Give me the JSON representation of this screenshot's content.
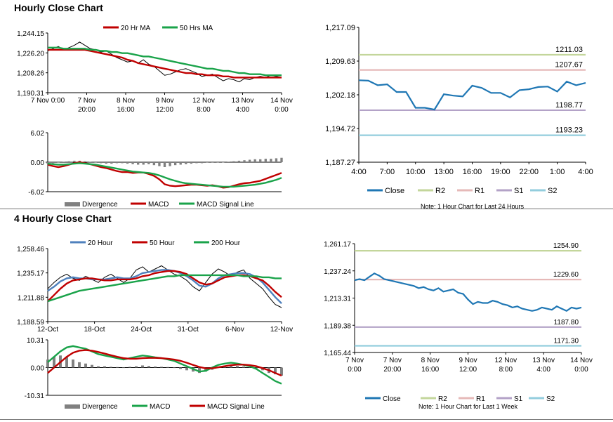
{
  "sections": {
    "hourly_title": "Hourly Close Chart",
    "four_hourly_title": "4 Hourly Close Chart"
  },
  "colors": {
    "green_ma": "#1aa34a",
    "red_ma": "#c00000",
    "blue_ma": "#4f81bd",
    "close": "#1f77b4",
    "r2": "#c3d69b",
    "r1": "#e6b9b8",
    "s1": "#b3a2c7",
    "s2": "#93cddd",
    "price": "#000000",
    "divergence": "#808080"
  },
  "chart_data": [
    {
      "id": "hourly-price",
      "type": "line",
      "ylim": [
        1190.31,
        1244.15
      ],
      "yticks": [
        "1,244.15",
        "1,226.20",
        "1,208.26",
        "1,190.31"
      ],
      "xticks": [
        [
          "7 Nov 0:00"
        ],
        [
          "7 Nov",
          "20:00"
        ],
        [
          "8 Nov",
          "16:00"
        ],
        [
          "9 Nov",
          "12:00"
        ],
        [
          "12 Nov",
          "8:00"
        ],
        [
          "13 Nov",
          "4:00"
        ],
        [
          "14 Nov",
          "0:00"
        ]
      ],
      "legend": [
        "20 Hr MA",
        "50 Hrs MA"
      ],
      "series": [
        {
          "name": "Price",
          "color": "#000000",
          "values": [
            1228,
            1230,
            1232,
            1229,
            1231,
            1233,
            1236,
            1233,
            1230,
            1229,
            1227,
            1228,
            1225,
            1222,
            1220,
            1218,
            1219,
            1217,
            1220,
            1216,
            1214,
            1210,
            1206,
            1207,
            1209,
            1211,
            1212,
            1210,
            1208,
            1205,
            1206,
            1207,
            1204,
            1201,
            1203,
            1202,
            1200,
            1203,
            1202,
            1204,
            1205,
            1204,
            1206,
            1205,
            1204
          ]
        },
        {
          "name": "20 Hr MA",
          "color": "#c00000",
          "values": [
            1229,
            1229,
            1229,
            1229,
            1229,
            1229,
            1229,
            1229,
            1228,
            1227,
            1226,
            1225,
            1224,
            1223,
            1222,
            1220,
            1219,
            1217,
            1216,
            1215,
            1214,
            1213,
            1212,
            1211,
            1210,
            1209,
            1208,
            1208,
            1207,
            1207,
            1206,
            1206,
            1206,
            1205,
            1205,
            1204,
            1204,
            1204,
            1204,
            1204,
            1204,
            1204,
            1204,
            1204,
            1204
          ]
        },
        {
          "name": "50 Hrs MA",
          "color": "#1aa34a",
          "values": [
            1231,
            1231,
            1231,
            1230,
            1230,
            1230,
            1230,
            1230,
            1229,
            1229,
            1228,
            1228,
            1227,
            1227,
            1226,
            1226,
            1225,
            1224,
            1223,
            1223,
            1222,
            1221,
            1220,
            1219,
            1218,
            1217,
            1216,
            1215,
            1214,
            1213,
            1212,
            1212,
            1211,
            1210,
            1210,
            1209,
            1208,
            1208,
            1207,
            1207,
            1207,
            1206,
            1206,
            1206,
            1206
          ]
        }
      ]
    },
    {
      "id": "hourly-macd",
      "type": "line",
      "ylim": [
        -6.02,
        6.02
      ],
      "yticks": [
        "6.02",
        "0.00",
        "-6.02"
      ],
      "legend": [
        "Divergence",
        "MACD",
        "MACD Signal Line"
      ],
      "divergence": [
        -0.3,
        -0.2,
        -0.1,
        0.1,
        0.2,
        0.3,
        0.3,
        0.2,
        0.1,
        -0.1,
        -0.2,
        -0.3,
        -0.3,
        -0.2,
        -0.2,
        -0.3,
        -0.4,
        -0.5,
        -0.5,
        -0.4,
        -0.6,
        -0.8,
        -1,
        -0.8,
        -0.6,
        -0.5,
        -0.4,
        -0.3,
        -0.2,
        -0.2,
        -0.1,
        -0.1,
        -0.1,
        0,
        0.1,
        0.2,
        0.3,
        0.4,
        0.5,
        0.6,
        0.6,
        0.7,
        0.7,
        0.8,
        0.9
      ],
      "series": [
        {
          "name": "MACD",
          "color": "#c00000",
          "values": [
            -0.5,
            -0.8,
            -1,
            -0.8,
            -0.5,
            -0.2,
            0,
            -0.2,
            -0.4,
            -0.7,
            -1,
            -1.2,
            -1.5,
            -1.8,
            -2,
            -2,
            -2.2,
            -2.1,
            -2.1,
            -2.4,
            -2.8,
            -3.5,
            -4.5,
            -4.8,
            -4.9,
            -4.8,
            -4.7,
            -4.6,
            -4.6,
            -4.7,
            -4.8,
            -4.7,
            -4.9,
            -5.2,
            -5.1,
            -4.8,
            -4.5,
            -4.3,
            -4.2,
            -4,
            -3.8,
            -3.4,
            -3,
            -2.6,
            -2.2
          ]
        },
        {
          "name": "MACD Signal Line",
          "color": "#1aa34a",
          "values": [
            -0.3,
            -0.4,
            -0.5,
            -0.5,
            -0.4,
            -0.3,
            -0.2,
            -0.3,
            -0.4,
            -0.5,
            -0.7,
            -0.9,
            -1.1,
            -1.3,
            -1.5,
            -1.7,
            -1.9,
            -2,
            -2.1,
            -2.2,
            -2.4,
            -2.7,
            -3.1,
            -3.5,
            -3.8,
            -4.1,
            -4.3,
            -4.4,
            -4.5,
            -4.6,
            -4.7,
            -4.8,
            -4.9,
            -5,
            -5,
            -5,
            -4.9,
            -4.8,
            -4.7,
            -4.6,
            -4.4,
            -4.2,
            -3.9,
            -3.6,
            -3.2
          ]
        }
      ]
    },
    {
      "id": "hourly-levels",
      "type": "line",
      "ylim": [
        1187.27,
        1217.09
      ],
      "yticks": [
        "1,217.09",
        "1,209.63",
        "1,202.18",
        "1,194.72",
        "1,187.27"
      ],
      "xticks": [
        "4:00",
        "7:00",
        "10:00",
        "13:00",
        "16:00",
        "19:00",
        "22:00",
        "1:00",
        "4:00"
      ],
      "close": [
        1205.4,
        1205.3,
        1204.3,
        1204.5,
        1202.8,
        1202.8,
        1199.3,
        1199.3,
        1198.9,
        1202.3,
        1202,
        1201.8,
        1204.2,
        1203.7,
        1202.6,
        1202.6,
        1201.6,
        1203.2,
        1203.4,
        1203.9,
        1204,
        1202.9,
        1205.1,
        1204.3,
        1204.8
      ],
      "levels": [
        {
          "name": "R2",
          "value": 1211.03,
          "label": "1211.03"
        },
        {
          "name": "R1",
          "value": 1207.67,
          "label": "1207.67"
        },
        {
          "name": "S1",
          "value": 1198.77,
          "label": "1198.77"
        },
        {
          "name": "S2",
          "value": 1193.23,
          "label": "1193.23"
        }
      ],
      "legend": [
        "Close",
        "R2",
        "R1",
        "S1",
        "S2"
      ],
      "note": "Note: 1 Hour Chart for Last 24 Hours"
    },
    {
      "id": "four-hourly-price",
      "type": "line",
      "ylim": [
        1188.59,
        1258.46
      ],
      "yticks": [
        "1,258.46",
        "1,235.17",
        "1,211.88",
        "1,188.59"
      ],
      "xticks": [
        "12-Oct",
        "18-Oct",
        "24-Oct",
        "31-Oct",
        "6-Nov",
        "12-Nov"
      ],
      "legend": [
        "20 Hour",
        "50 Hour",
        "200 Hour"
      ],
      "series": [
        {
          "name": "Price",
          "color": "#000000",
          "values": [
            1220,
            1226,
            1231,
            1234,
            1230,
            1228,
            1232,
            1229,
            1226,
            1231,
            1234,
            1230,
            1226,
            1230,
            1238,
            1241,
            1236,
            1239,
            1242,
            1238,
            1234,
            1232,
            1228,
            1222,
            1218,
            1226,
            1234,
            1239,
            1236,
            1232,
            1236,
            1238,
            1230,
            1225,
            1220,
            1212,
            1205,
            1202
          ]
        },
        {
          "name": "20 Hour",
          "color": "#4f81bd",
          "values": [
            1218,
            1222,
            1227,
            1230,
            1231,
            1230,
            1230,
            1229,
            1229,
            1229,
            1230,
            1231,
            1230,
            1230,
            1232,
            1235,
            1236,
            1237,
            1238,
            1238,
            1237,
            1235,
            1232,
            1228,
            1223,
            1222,
            1225,
            1230,
            1233,
            1234,
            1235,
            1235,
            1234,
            1231,
            1226,
            1219,
            1212,
            1206
          ]
        },
        {
          "name": "50 Hour",
          "color": "#c00000",
          "values": [
            1208,
            1214,
            1220,
            1225,
            1228,
            1229,
            1230,
            1230,
            1229,
            1228,
            1228,
            1229,
            1229,
            1229,
            1230,
            1232,
            1233,
            1235,
            1236,
            1237,
            1237,
            1236,
            1234,
            1230,
            1226,
            1224,
            1225,
            1228,
            1231,
            1232,
            1233,
            1233,
            1232,
            1230,
            1228,
            1223,
            1217,
            1212
          ]
        },
        {
          "name": "200 Hour",
          "color": "#1aa34a",
          "values": [
            1208,
            1210,
            1212,
            1214,
            1216,
            1218,
            1219,
            1220,
            1221,
            1222,
            1223,
            1224,
            1225,
            1226,
            1227,
            1228,
            1229,
            1230,
            1231,
            1232,
            1232,
            1233,
            1233,
            1233,
            1233,
            1233,
            1233,
            1233,
            1233,
            1233,
            1233,
            1232,
            1232,
            1232,
            1231,
            1231,
            1230,
            1230
          ]
        }
      ]
    },
    {
      "id": "four-hourly-macd",
      "type": "line",
      "ylim": [
        -10.31,
        10.31
      ],
      "yticks": [
        "10.31",
        "0.00",
        "-10.31"
      ],
      "legend": [
        "Divergence",
        "MACD",
        "MACD Signal Line"
      ],
      "divergence": [
        3,
        4,
        4.5,
        4,
        3,
        2,
        1.5,
        1,
        0.5,
        0.5,
        0.3,
        0.2,
        0,
        0.3,
        0.5,
        0.8,
        0.6,
        0.4,
        0.3,
        0.2,
        0,
        -0.5,
        -1,
        -1.5,
        -2,
        -1.5,
        -0.8,
        0,
        0.6,
        0.8,
        0.6,
        0.4,
        0.2,
        -0.3,
        -1,
        -2,
        -2.5,
        -3
      ],
      "series": [
        {
          "name": "MACD",
          "color": "#1aa34a",
          "values": [
            2,
            4,
            6,
            7.5,
            8,
            7.5,
            7,
            6,
            5,
            4.5,
            4,
            3.5,
            3,
            3.5,
            4,
            4.5,
            4.2,
            3.8,
            3.5,
            3,
            2.5,
            1.5,
            0.5,
            -0.5,
            -1.5,
            -1.2,
            0,
            1,
            1.5,
            1.8,
            1.5,
            1,
            0.5,
            -0.5,
            -2,
            -3.5,
            -5,
            -6
          ]
        },
        {
          "name": "MACD Signal Line",
          "color": "#c00000",
          "values": [
            -2,
            0,
            2,
            4,
            5.5,
            6.3,
            6.5,
            6.3,
            5.8,
            5.2,
            4.6,
            4,
            3.5,
            3.3,
            3.3,
            3.5,
            3.6,
            3.6,
            3.5,
            3.3,
            3,
            2.5,
            1.8,
            1,
            0.2,
            -0.3,
            -0.3,
            0.1,
            0.5,
            0.9,
            1.1,
            1.1,
            0.9,
            0.5,
            -0.2,
            -1,
            -2,
            -3
          ]
        }
      ]
    },
    {
      "id": "four-hourly-levels",
      "type": "line",
      "ylim": [
        1165.44,
        1261.17
      ],
      "yticks": [
        "1,261.17",
        "1,237.24",
        "1,213.31",
        "1,189.38",
        "1,165.44"
      ],
      "xticks": [
        [
          "7 Nov",
          "0:00"
        ],
        [
          "7 Nov",
          "20:00"
        ],
        [
          "8 Nov",
          "16:00"
        ],
        [
          "9 Nov",
          "12:00"
        ],
        [
          "12 Nov",
          "8:00"
        ],
        [
          "13 Nov",
          "4:00"
        ],
        [
          "14 Nov",
          "0:00"
        ]
      ],
      "close": [
        1229,
        1230,
        1229,
        1232,
        1235,
        1233,
        1230,
        1229,
        1228,
        1227,
        1226,
        1225,
        1224,
        1222,
        1223,
        1221,
        1220,
        1222,
        1219,
        1220,
        1221,
        1218,
        1217,
        1212,
        1208,
        1210,
        1209,
        1209,
        1211,
        1210,
        1208,
        1207,
        1205,
        1206,
        1204,
        1203,
        1202,
        1203,
        1205,
        1204,
        1203,
        1206,
        1204,
        1202,
        1205,
        1204,
        1205
      ],
      "levels": [
        {
          "name": "R2",
          "value": 1254.9,
          "label": "1254.90"
        },
        {
          "name": "R1",
          "value": 1229.6,
          "label": "1229.60"
        },
        {
          "name": "S1",
          "value": 1187.8,
          "label": "1187.80"
        },
        {
          "name": "S2",
          "value": 1171.3,
          "label": "1171.30"
        }
      ],
      "legend": [
        "Close",
        "R2",
        "R1",
        "S1",
        "S2"
      ],
      "note": "Note: 1 Hour Chart for Last 1 Week"
    }
  ]
}
